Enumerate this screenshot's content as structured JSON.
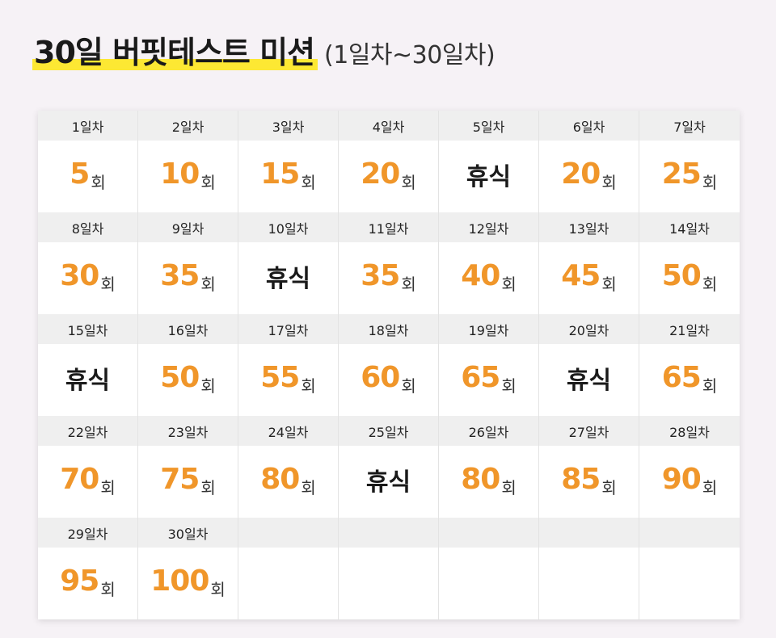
{
  "title": {
    "main": "30일 버핏테스트 미션",
    "sub": "(1일차~30일차)"
  },
  "unit": "회",
  "colors": {
    "number": "#f0962a",
    "highlight": "#fde833",
    "header_bg": "#efefef"
  },
  "days": [
    {
      "day": "1일차",
      "count": "5"
    },
    {
      "day": "2일차",
      "count": "10"
    },
    {
      "day": "3일차",
      "count": "15"
    },
    {
      "day": "4일차",
      "count": "20"
    },
    {
      "day": "5일차",
      "rest": "휴식"
    },
    {
      "day": "6일차",
      "count": "20"
    },
    {
      "day": "7일차",
      "count": "25"
    },
    {
      "day": "8일차",
      "count": "30"
    },
    {
      "day": "9일차",
      "count": "35"
    },
    {
      "day": "10일차",
      "rest": "휴식"
    },
    {
      "day": "11일차",
      "count": "35"
    },
    {
      "day": "12일차",
      "count": "40"
    },
    {
      "day": "13일차",
      "count": "45"
    },
    {
      "day": "14일차",
      "count": "50"
    },
    {
      "day": "15일차",
      "rest": "휴식"
    },
    {
      "day": "16일차",
      "count": "50"
    },
    {
      "day": "17일차",
      "count": "55"
    },
    {
      "day": "18일차",
      "count": "60"
    },
    {
      "day": "19일차",
      "count": "65"
    },
    {
      "day": "20일차",
      "rest": "휴식"
    },
    {
      "day": "21일차",
      "count": "65"
    },
    {
      "day": "22일차",
      "count": "70"
    },
    {
      "day": "23일차",
      "count": "75"
    },
    {
      "day": "24일차",
      "count": "80"
    },
    {
      "day": "25일차",
      "rest": "휴식"
    },
    {
      "day": "26일차",
      "count": "80"
    },
    {
      "day": "27일차",
      "count": "85"
    },
    {
      "day": "28일차",
      "count": "90"
    },
    {
      "day": "29일차",
      "count": "95"
    },
    {
      "day": "30일차",
      "count": "100"
    }
  ]
}
